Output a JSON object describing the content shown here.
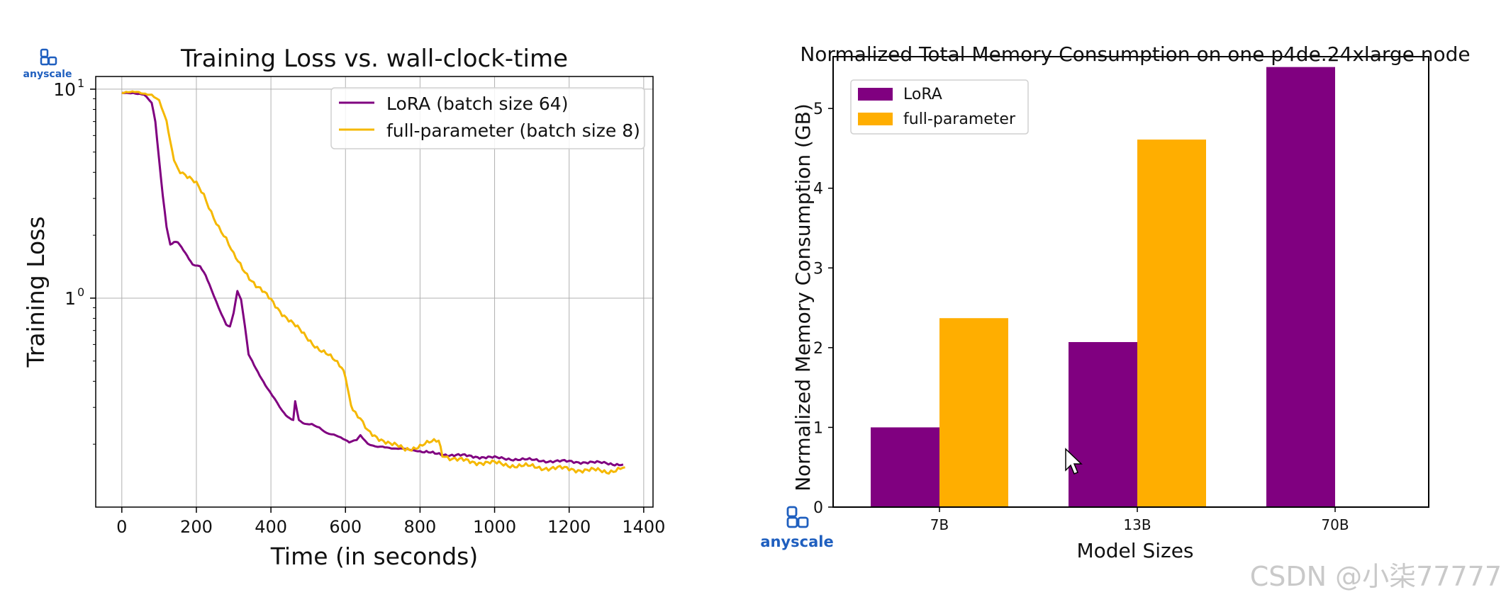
{
  "brand": {
    "name": "anyscale"
  },
  "watermark": "CSDN @小柒77777",
  "colors": {
    "lora": "#800080",
    "full": "#ffae00",
    "full_line": "#f5b800",
    "grid": "#b0b0b0",
    "brand": "#1f5fbf"
  },
  "chart_data": [
    {
      "type": "line",
      "title": "Training Loss vs. wall-clock-time",
      "xlabel": "Time (in seconds)",
      "ylabel": "Training Loss",
      "xlim": [
        -70,
        1425
      ],
      "ylim": [
        0.1,
        11.5
      ],
      "yscale": "log",
      "grid": true,
      "legend_position": "top-right",
      "x_ticks": [
        "0",
        "200",
        "400",
        "600",
        "800",
        "1000",
        "1200",
        "1400"
      ],
      "y_ticks": [
        "10",
        "1"
      ],
      "y_tick_exponents": [
        "1",
        "0"
      ],
      "series": [
        {
          "name": "LoRA (batch size 64)",
          "color": "#800080",
          "x": [
            0,
            30,
            60,
            80,
            90,
            100,
            110,
            120,
            130,
            140,
            150,
            160,
            175,
            190,
            210,
            225,
            240,
            260,
            280,
            290,
            300,
            310,
            320,
            330,
            340,
            350,
            360,
            375,
            390,
            410,
            430,
            445,
            460,
            465,
            475,
            490,
            510,
            530,
            550,
            575,
            600,
            610,
            630,
            640,
            660,
            680,
            700,
            730,
            760,
            800,
            840,
            880,
            920,
            960,
            1000,
            1050,
            1100,
            1150,
            1200,
            1250,
            1300,
            1345
          ],
          "y": [
            9.6,
            9.6,
            9.4,
            8.6,
            7.0,
            4.6,
            3.1,
            2.2,
            1.8,
            1.85,
            1.85,
            1.75,
            1.6,
            1.45,
            1.42,
            1.28,
            1.1,
            0.9,
            0.75,
            0.73,
            0.85,
            1.08,
            0.98,
            0.74,
            0.54,
            0.5,
            0.46,
            0.41,
            0.37,
            0.33,
            0.29,
            0.27,
            0.26,
            0.32,
            0.26,
            0.25,
            0.25,
            0.24,
            0.225,
            0.22,
            0.21,
            0.205,
            0.21,
            0.22,
            0.2,
            0.195,
            0.195,
            0.19,
            0.19,
            0.185,
            0.18,
            0.178,
            0.176,
            0.174,
            0.172,
            0.17,
            0.168,
            0.166,
            0.165,
            0.164,
            0.162,
            0.16
          ]
        },
        {
          "name": "full-parameter (batch size 8)",
          "color": "#f5b800",
          "x": [
            0,
            40,
            80,
            100,
            120,
            130,
            140,
            150,
            170,
            200,
            220,
            240,
            260,
            280,
            300,
            330,
            360,
            400,
            430,
            460,
            500,
            530,
            560,
            590,
            600,
            610,
            620,
            640,
            660,
            690,
            720,
            760,
            800,
            850,
            860,
            880,
            900,
            940,
            1000,
            1060,
            1120,
            1200,
            1260,
            1300,
            1350
          ],
          "y": [
            9.6,
            9.7,
            9.4,
            8.8,
            7.0,
            5.6,
            4.6,
            4.2,
            3.9,
            3.5,
            3.1,
            2.6,
            2.2,
            1.9,
            1.6,
            1.35,
            1.15,
            0.98,
            0.85,
            0.75,
            0.64,
            0.57,
            0.52,
            0.47,
            0.43,
            0.34,
            0.29,
            0.26,
            0.23,
            0.215,
            0.2,
            0.19,
            0.195,
            0.21,
            0.18,
            0.172,
            0.168,
            0.165,
            0.162,
            0.158,
            0.155,
            0.152,
            0.15,
            0.148,
            0.155
          ]
        }
      ]
    },
    {
      "type": "bar",
      "title": "Normalized Total Memory Consumption on one p4de.24xlarge node",
      "xlabel": "Model Sizes",
      "ylabel": "Normalized Memory Consumption (GB)",
      "categories": [
        "7B",
        "13B",
        "70B"
      ],
      "ylim": [
        0,
        5.65
      ],
      "y_ticks": [
        "0",
        "1",
        "2",
        "3",
        "4",
        "5"
      ],
      "grid": false,
      "legend_position": "top-left",
      "series": [
        {
          "name": "LoRA",
          "color": "#800080",
          "values": [
            1.0,
            2.07,
            5.52
          ]
        },
        {
          "name": "full-parameter",
          "color": "#ffae00",
          "values": [
            2.37,
            4.61,
            null
          ]
        }
      ]
    }
  ]
}
